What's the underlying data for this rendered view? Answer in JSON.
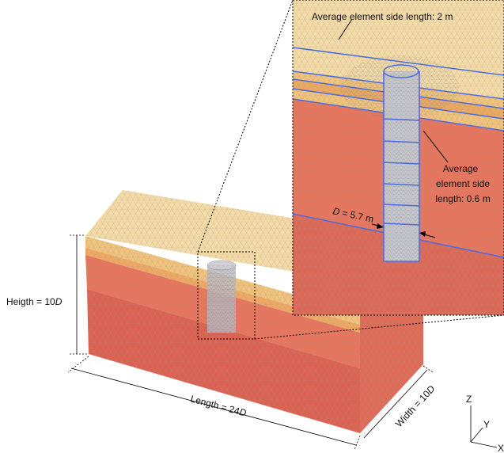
{
  "annotations": {
    "coarse_mesh": "Average element side length: 2 m",
    "fine_mesh": [
      "Average",
      "element side",
      "length: 0.6 m"
    ],
    "diameter": {
      "var": "D",
      "text": " = 5.7 m"
    },
    "height": {
      "text": "Heigth = 10",
      "var": "D"
    },
    "length": {
      "text": "Length = 24",
      "var": "D"
    },
    "width": {
      "text": "Width = 10",
      "var": "D"
    }
  },
  "axes": {
    "z": "Z",
    "y": "Y",
    "x": "X"
  }
}
